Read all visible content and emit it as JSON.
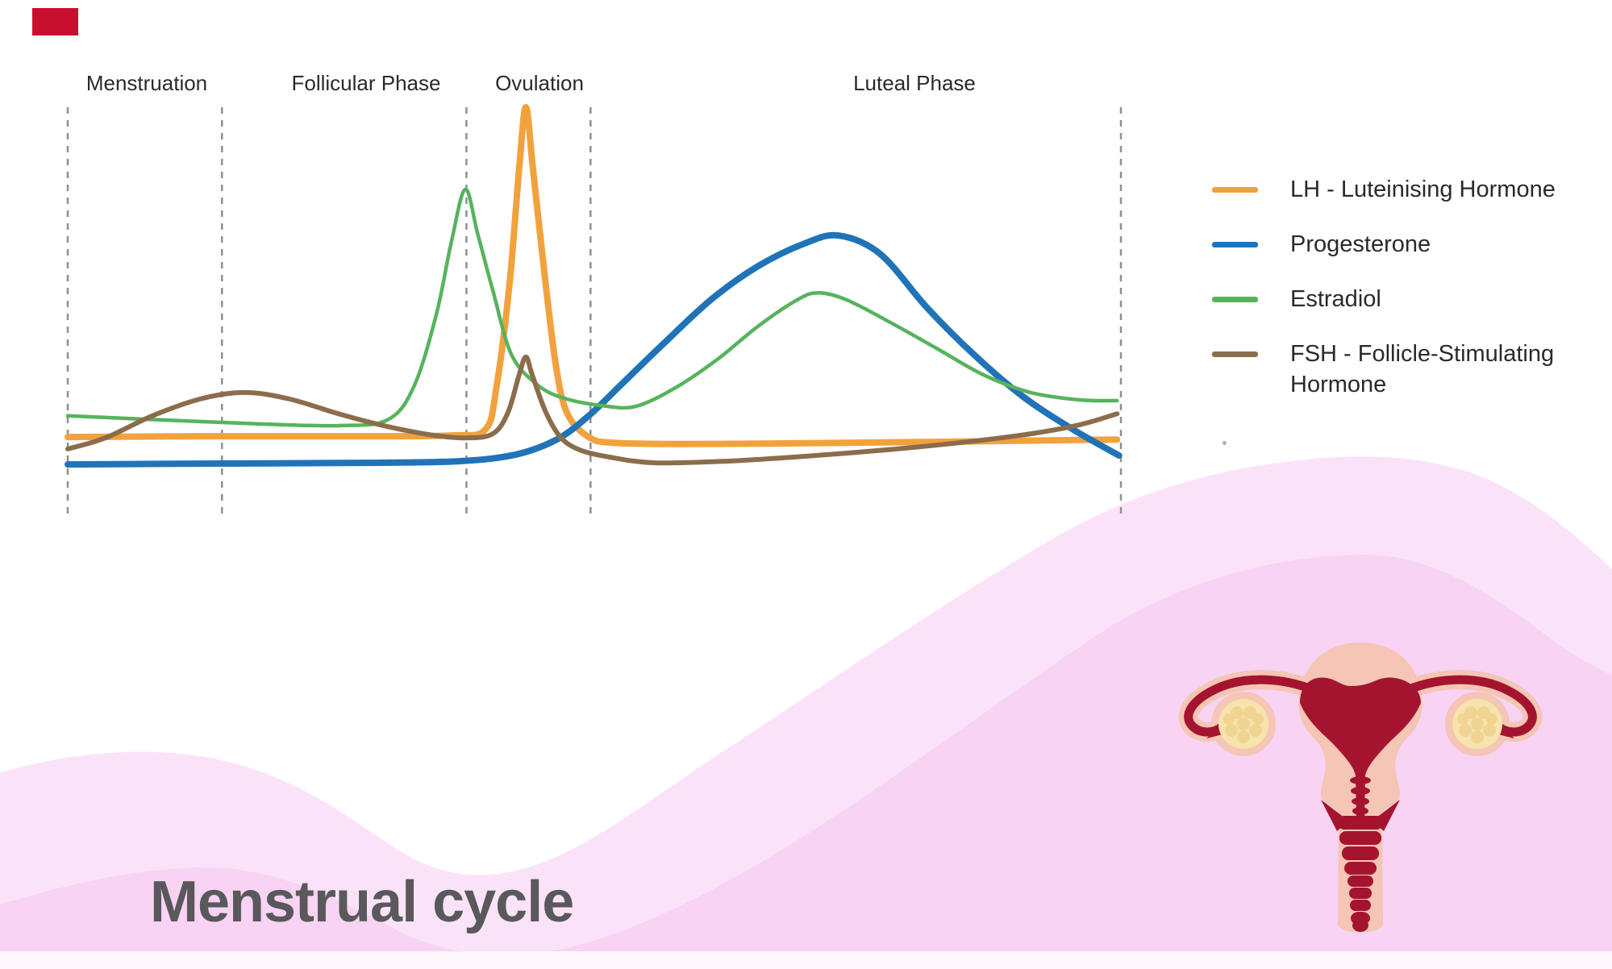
{
  "title": "Menstrual cycle",
  "phases": [
    {
      "label": "Menstruation",
      "start_day": 0,
      "end_day": 4.1
    },
    {
      "label": "Follicular Phase",
      "start_day": 4.1,
      "end_day": 10.6
    },
    {
      "label": "Ovulation",
      "start_day": 10.6,
      "end_day": 13.9
    },
    {
      "label": "Luteal Phase",
      "start_day": 13.9,
      "end_day": 28
    }
  ],
  "legend": {
    "items": [
      {
        "label": "LH - Luteinising Hormone",
        "color": "#F2A23C"
      },
      {
        "label": "Progesterone",
        "color": "#2173B8"
      },
      {
        "label": "Estradiol",
        "color": "#57B35D"
      },
      {
        "label": "FSH - Follicle-Stimulating Hormone",
        "color": "#8B6D4B"
      }
    ]
  },
  "chart_data": {
    "type": "line",
    "title": "",
    "xlabel": "",
    "ylabel": "",
    "x_unit": "day of cycle (estimated, 28-day cycle, no numeric axis shown)",
    "y_unit": "relative hormone level (0 = axis bottom, 100 = LH peak)",
    "x_range": [
      0,
      28
    ],
    "y_range": [
      0,
      100
    ],
    "grid": "dashed vertical phase-boundary lines only",
    "legend_position": "right",
    "phase_boundaries_days": [
      0,
      4.1,
      10.6,
      13.9,
      28
    ],
    "series": [
      {
        "name": "LH - Luteinising Hormone",
        "color": "#F2A23C",
        "stroke_width": 8,
        "points": [
          [
            0,
            19.3
          ],
          [
            3.6,
            19.5
          ],
          [
            7.9,
            19.5
          ],
          [
            10.2,
            19.7
          ],
          [
            11.1,
            21.1
          ],
          [
            11.4,
            31.6
          ],
          [
            11.75,
            57.2
          ],
          [
            12.0,
            84.8
          ],
          [
            12.18,
            100
          ],
          [
            12.37,
            84.8
          ],
          [
            12.7,
            57.2
          ],
          [
            13.0,
            35.5
          ],
          [
            13.3,
            24.7
          ],
          [
            13.85,
            19.3
          ],
          [
            14.5,
            17.9
          ],
          [
            16.4,
            17.6
          ],
          [
            19.6,
            17.8
          ],
          [
            22.9,
            18.1
          ],
          [
            26.1,
            18.5
          ],
          [
            27.9,
            18.7
          ]
        ]
      },
      {
        "name": "Progesterone",
        "color": "#2173B8",
        "stroke_width": 8,
        "points": [
          [
            0,
            12.6
          ],
          [
            3.6,
            12.8
          ],
          [
            7.9,
            13.0
          ],
          [
            10.4,
            13.4
          ],
          [
            11.9,
            15.0
          ],
          [
            13.0,
            18.7
          ],
          [
            13.85,
            24.5
          ],
          [
            14.7,
            32.0
          ],
          [
            15.8,
            41.8
          ],
          [
            17.1,
            52.9
          ],
          [
            18.35,
            61.1
          ],
          [
            19.6,
            66.7
          ],
          [
            20.5,
            68.6
          ],
          [
            21.6,
            64.1
          ],
          [
            22.85,
            50.9
          ],
          [
            24.1,
            39.4
          ],
          [
            25.4,
            29.2
          ],
          [
            26.7,
            21.3
          ],
          [
            27.95,
            14.8
          ]
        ]
      },
      {
        "name": "Estradiol",
        "color": "#57B35D",
        "stroke_width": 4.5,
        "points": [
          [
            0,
            24.5
          ],
          [
            2.5,
            23.5
          ],
          [
            5.1,
            22.5
          ],
          [
            7.2,
            22.1
          ],
          [
            8.5,
            23.5
          ],
          [
            9.2,
            31.6
          ],
          [
            9.8,
            49.3
          ],
          [
            10.2,
            67.1
          ],
          [
            10.57,
            79.9
          ],
          [
            10.9,
            69.0
          ],
          [
            11.3,
            55.2
          ],
          [
            11.8,
            39.4
          ],
          [
            12.5,
            32.0
          ],
          [
            13.2,
            28.8
          ],
          [
            14.2,
            27.0
          ],
          [
            15.1,
            26.8
          ],
          [
            16.2,
            31.6
          ],
          [
            17.3,
            38.5
          ],
          [
            18.35,
            46.4
          ],
          [
            19.4,
            52.9
          ],
          [
            19.96,
            54.6
          ],
          [
            20.7,
            52.9
          ],
          [
            21.8,
            47.7
          ],
          [
            23.1,
            41.0
          ],
          [
            24.35,
            34.5
          ],
          [
            25.6,
            30.2
          ],
          [
            26.9,
            28.4
          ],
          [
            27.9,
            28.2
          ]
        ]
      },
      {
        "name": "FSH - Follicle-Stimulating Hormone",
        "color": "#8B6D4B",
        "stroke_width": 6,
        "points": [
          [
            0,
            16.4
          ],
          [
            1.0,
            19.1
          ],
          [
            2.3,
            24.7
          ],
          [
            3.6,
            28.8
          ],
          [
            4.74,
            30.2
          ],
          [
            5.9,
            28.6
          ],
          [
            7.2,
            25.0
          ],
          [
            8.3,
            22.3
          ],
          [
            9.6,
            19.9
          ],
          [
            10.6,
            19.1
          ],
          [
            11.3,
            20.1
          ],
          [
            11.7,
            25.2
          ],
          [
            12.0,
            34.5
          ],
          [
            12.18,
            38.9
          ],
          [
            12.35,
            34.5
          ],
          [
            12.7,
            25.6
          ],
          [
            13.1,
            19.3
          ],
          [
            13.6,
            16.2
          ],
          [
            14.4,
            14.4
          ],
          [
            15.6,
            13.0
          ],
          [
            17.5,
            13.4
          ],
          [
            19.6,
            14.6
          ],
          [
            21.8,
            16.2
          ],
          [
            23.9,
            18.1
          ],
          [
            25.6,
            20.1
          ],
          [
            26.9,
            22.3
          ],
          [
            27.9,
            25.0
          ]
        ]
      }
    ]
  },
  "illustration": {
    "name": "uterus with fallopian tubes and ovaries"
  },
  "colors": {
    "bg": "#FFFFFF",
    "marker": "#C8102E",
    "dashed_line": "#909090",
    "phase_label": "#2B2A2A",
    "legend_text": "#2B2A2A",
    "title_text": "#59585B",
    "wave_back": "#FAE3F8",
    "wave_front": "#F8D3F3",
    "bottom_strip": "#FDF7FC",
    "uterus_peach": "#F5C5B5",
    "uterus_red": "#A5142E",
    "ovary_cream": "#F7E3AC",
    "ovary_bump": "#F0D494",
    "speck": "#AFAFAF"
  }
}
